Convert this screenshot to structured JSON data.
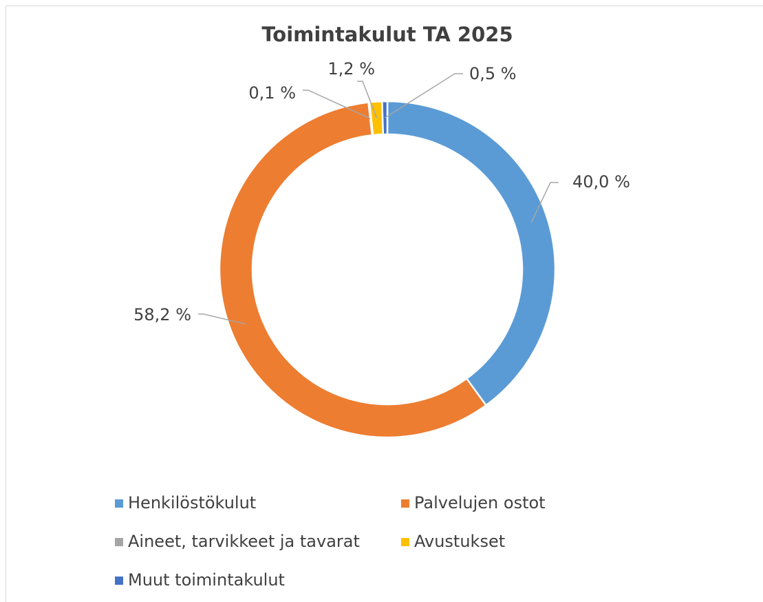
{
  "chart_data": {
    "type": "donut",
    "title": "Toimintakulut TA 2025",
    "categories": [
      "Henkilöstökulut",
      "Palvelujen ostot",
      "Aineet, tarvikkeet ja tavarat",
      "Avustukset",
      "Muut toimintakulut"
    ],
    "values": [
      40.0,
      58.2,
      0.1,
      1.2,
      0.5
    ],
    "value_labels": [
      "40,0 %",
      "58,2 %",
      "0,1 %",
      "1,2 %",
      "0,5 %"
    ],
    "colors": [
      "#5b9bd5",
      "#ed7d31",
      "#a5a5a5",
      "#ffc000",
      "#4472c4"
    ],
    "legend": "bottom"
  }
}
